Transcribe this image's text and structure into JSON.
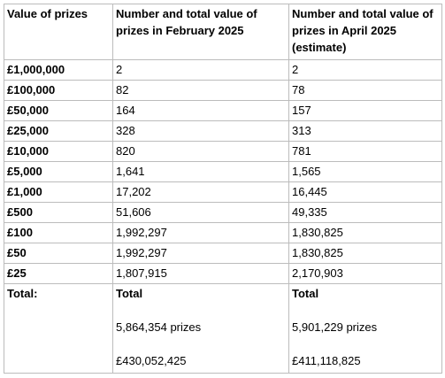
{
  "headers": {
    "col1": "Value of prizes",
    "col2": "Number and total value of prizes in February 2025",
    "col3": "Number and total value of prizes in April 2025 (estimate)"
  },
  "rows": [
    {
      "value": "£1,000,000",
      "feb": "2",
      "apr": "2"
    },
    {
      "value": "£100,000",
      "feb": "82",
      "apr": "78"
    },
    {
      "value": "£50,000",
      "feb": "164",
      "apr": "157"
    },
    {
      "value": "£25,000",
      "feb": "328",
      "apr": "313"
    },
    {
      "value": "£10,000",
      "feb": "820",
      "apr": "781"
    },
    {
      "value": "£5,000",
      "feb": "1,641",
      "apr": "1,565"
    },
    {
      "value": "£1,000",
      "feb": "17,202",
      "apr": "16,445"
    },
    {
      "value": "£500",
      "feb": "51,606",
      "apr": "49,335"
    },
    {
      "value": "£100",
      "feb": "1,992,297",
      "apr": "1,830,825"
    },
    {
      "value": "£50",
      "feb": "1,992,297",
      "apr": "1,830,825"
    },
    {
      "value": "£25",
      "feb": "1,807,915",
      "apr": "2,170,903"
    }
  ],
  "total": {
    "label": "Total:",
    "feb": {
      "heading": "Total",
      "prizes": "5,864,354 prizes",
      "value": "£430,052,425"
    },
    "apr": {
      "heading": "Total",
      "prizes": "5,901,229 prizes",
      "value": "£411,118,825"
    }
  }
}
